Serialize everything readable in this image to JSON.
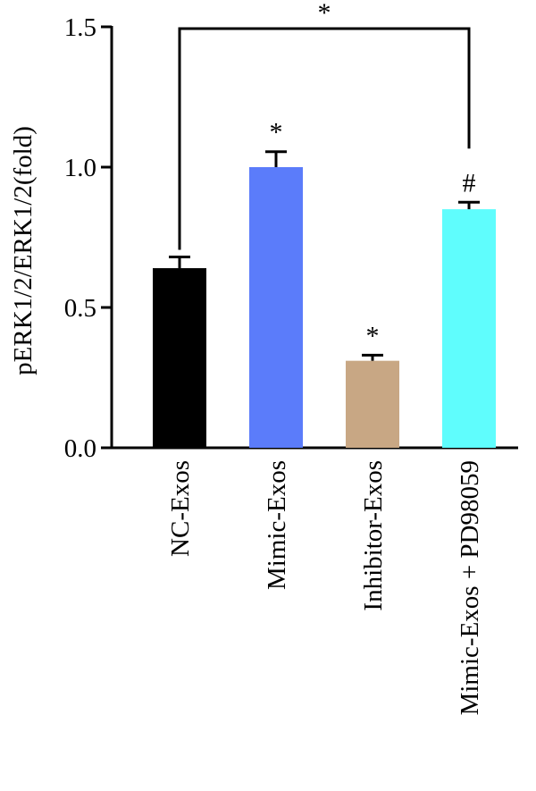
{
  "chart_data": {
    "type": "bar",
    "ylabel": "pERK1/2/ERK1/2(fold)",
    "xlabel": "",
    "ylim": [
      0,
      1.5
    ],
    "yticks": [
      0.0,
      0.5,
      1.0,
      1.5
    ],
    "ytick_labels": [
      "0.0",
      "0.5",
      "1.0",
      "1.5"
    ],
    "categories": [
      "NC-Exos",
      "Mimic-Exos",
      "Inhibitor-Exos",
      "Mimic-Exos + PD98059"
    ],
    "values": [
      0.64,
      1.0,
      0.31,
      0.85
    ],
    "errors": [
      0.04,
      0.055,
      0.02,
      0.025
    ],
    "colors": [
      "#000000",
      "#5b7cfa",
      "#c8a784",
      "#5ffdfd"
    ],
    "significance": [
      "",
      "*",
      "*",
      "#"
    ],
    "bracket": {
      "from": 0,
      "to": 3,
      "y": 1.5,
      "label": "*"
    }
  }
}
